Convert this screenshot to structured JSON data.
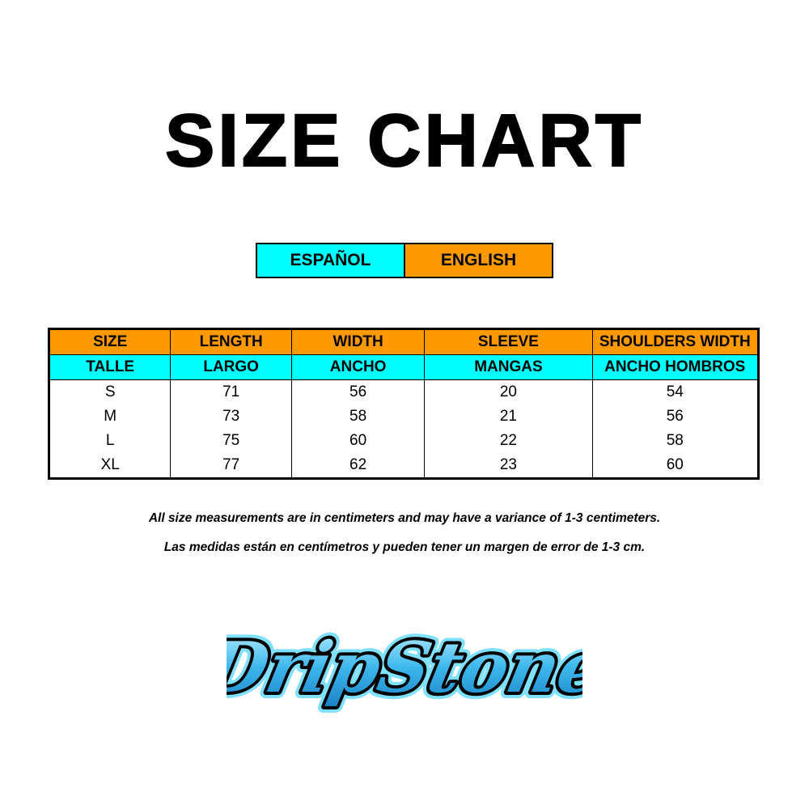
{
  "title": "SIZE CHART",
  "languages": {
    "spanish": "ESPAÑOL",
    "english": "ENGLISH"
  },
  "colors": {
    "orange": "#ff9900",
    "cyan": "#00ffff"
  },
  "table": {
    "headers_en": [
      "SIZE",
      "LENGTH",
      "WIDTH",
      "SLEEVE",
      "SHOULDERS WIDTH"
    ],
    "headers_es": [
      "TALLE",
      "LARGO",
      "ANCHO",
      "MANGAS",
      "ANCHO HOMBROS"
    ],
    "rows": [
      [
        "S",
        "71",
        "56",
        "20",
        "54"
      ],
      [
        "M",
        "73",
        "58",
        "21",
        "56"
      ],
      [
        "L",
        "75",
        "60",
        "22",
        "58"
      ],
      [
        "XL",
        "77",
        "62",
        "23",
        "60"
      ]
    ]
  },
  "notes": {
    "english": "All size measurements are in centimeters and may have a variance of 1-3 centimeters.",
    "spanish": "Las medidas están en centímetros y pueden tener un margen de error de 1-3 cm."
  },
  "logo": {
    "text": "DripStone"
  }
}
